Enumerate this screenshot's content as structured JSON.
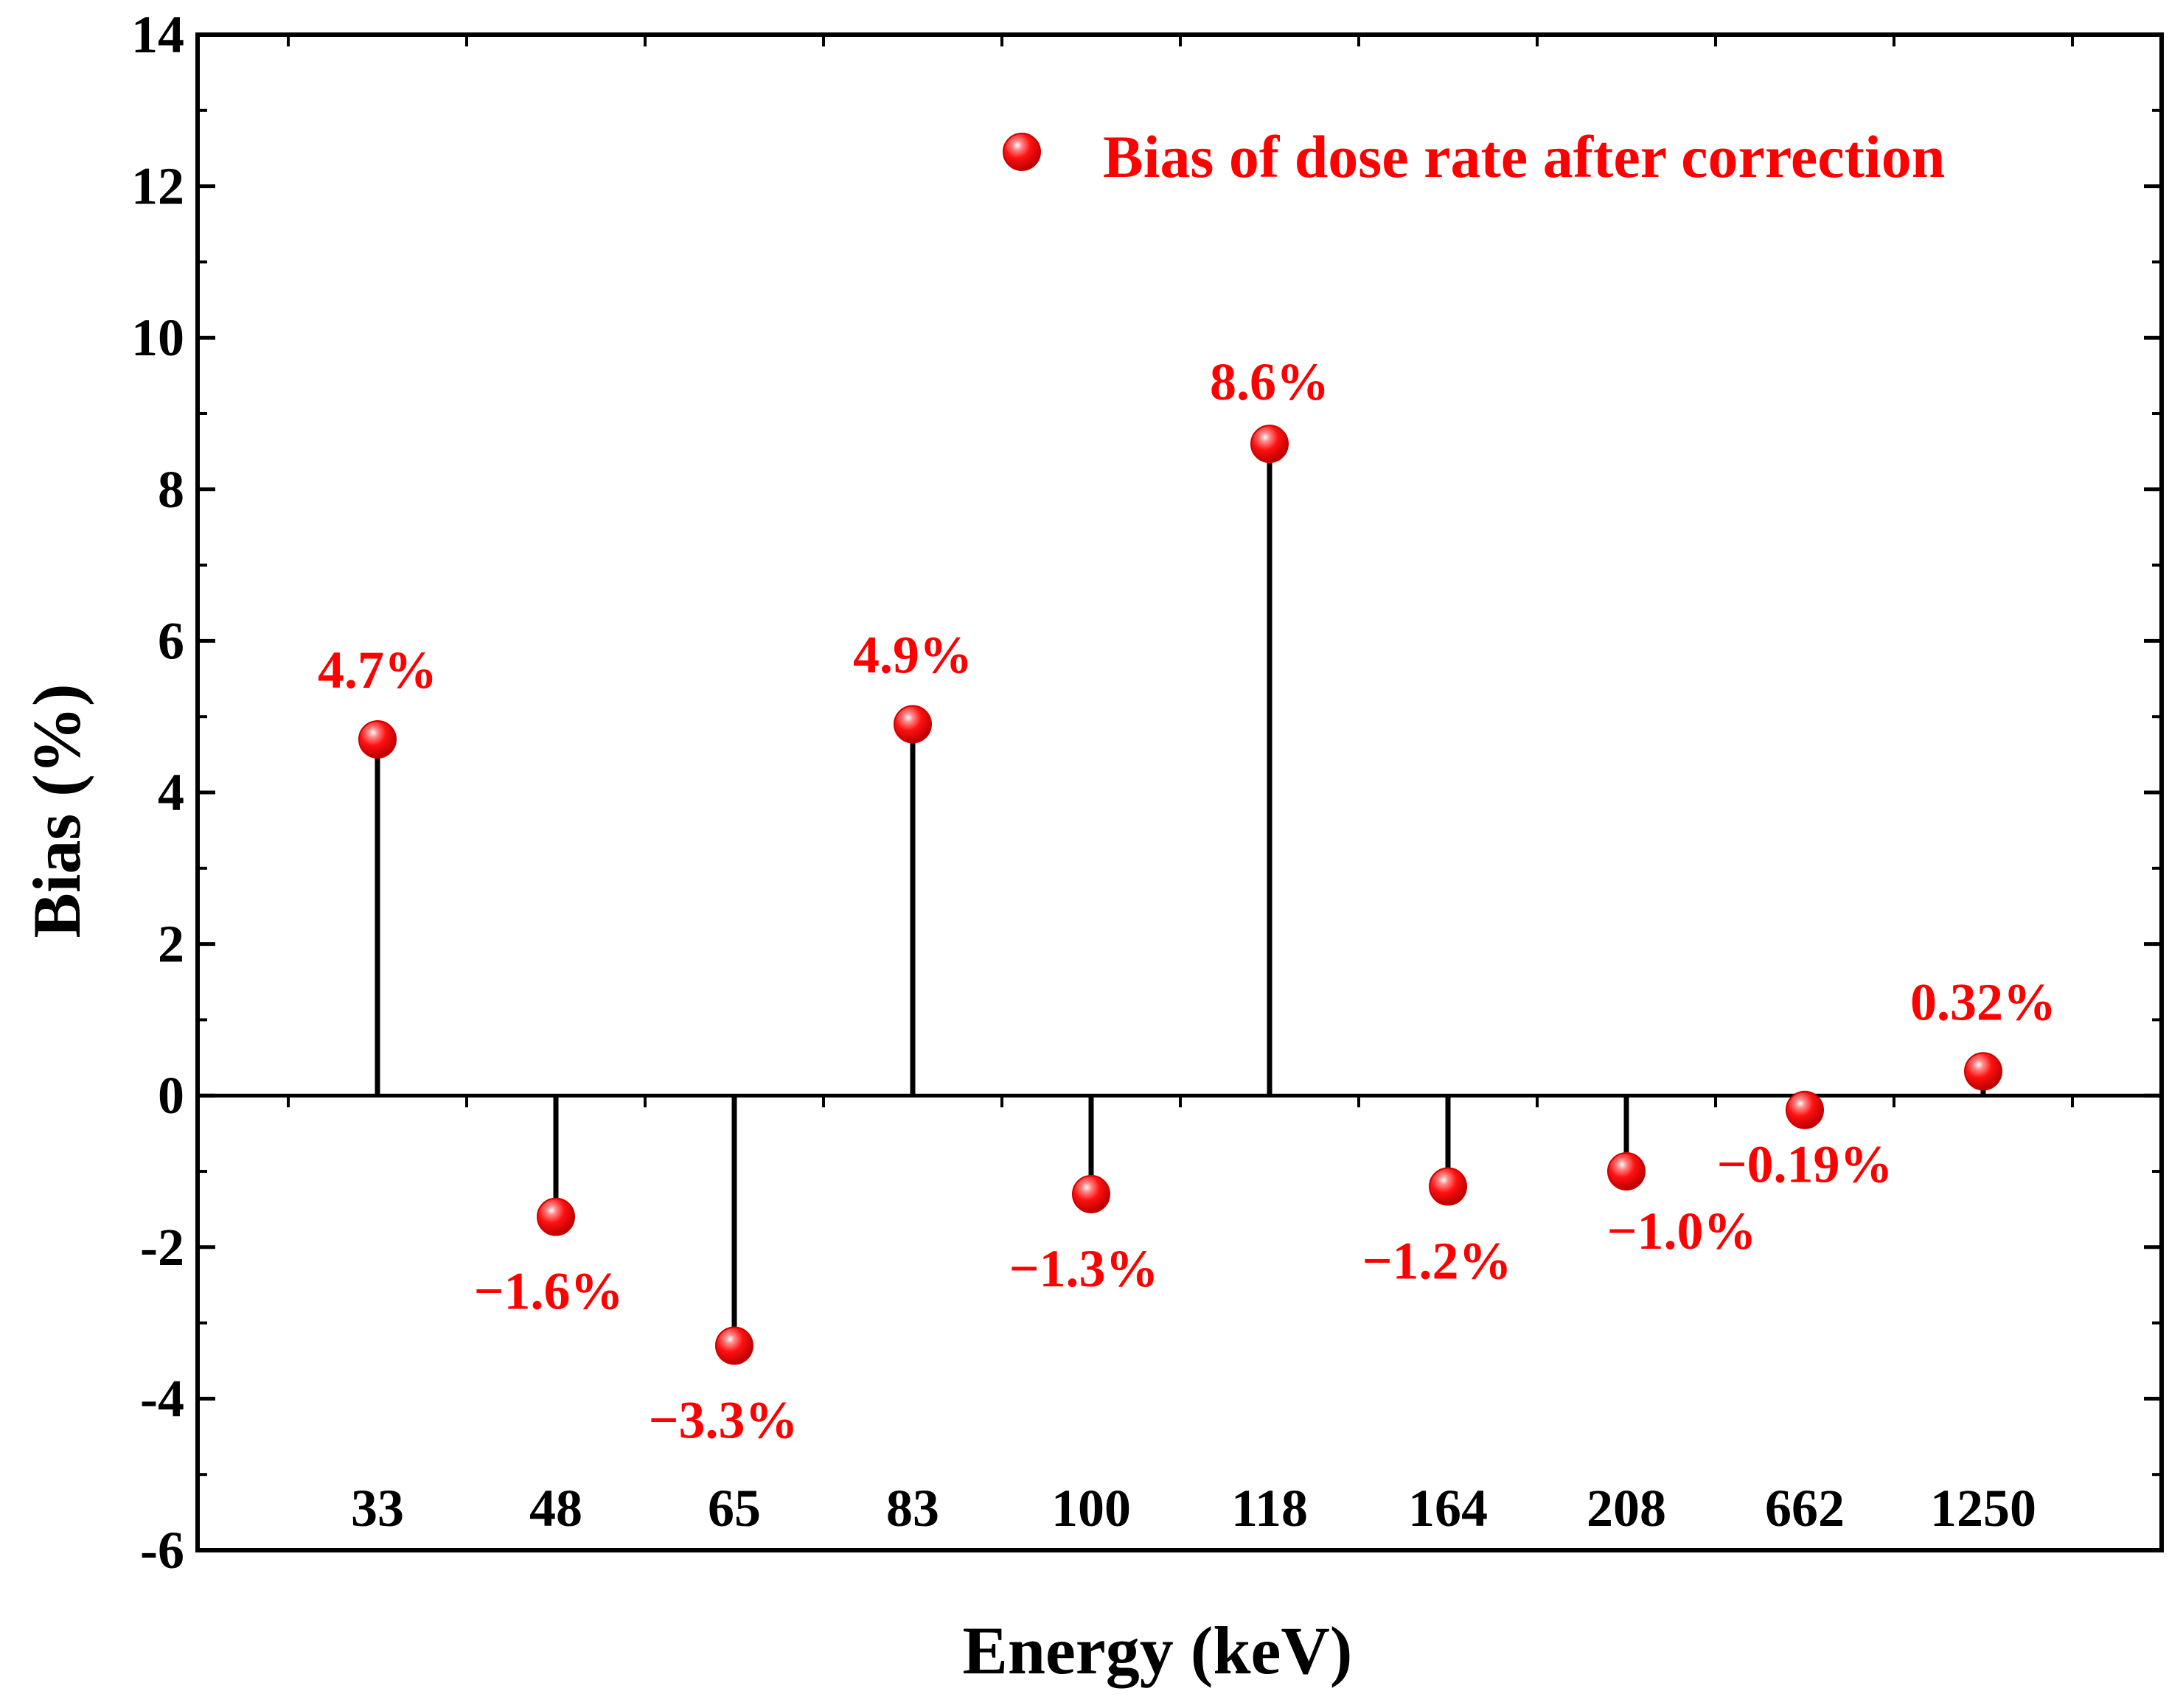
{
  "chart_data": {
    "type": "stem",
    "title": "",
    "xlabel": "Energy (keV)",
    "ylabel": "Bias (%)",
    "ylim": [
      -6,
      14
    ],
    "yticks": [
      -6,
      -4,
      -2,
      0,
      2,
      4,
      6,
      8,
      10,
      12,
      14
    ],
    "grid": false,
    "categories": [
      "33",
      "48",
      "65",
      "83",
      "100",
      "118",
      "164",
      "208",
      "662",
      "1250"
    ],
    "series": [
      {
        "name": "Bias of dose rate after correction",
        "color": "#ff0000",
        "values": [
          4.7,
          -1.6,
          -3.3,
          4.9,
          -1.3,
          8.6,
          -1.2,
          -1.0,
          -0.19,
          0.32
        ],
        "labels": [
          "4.7%",
          "−1.6%",
          "−3.3%",
          "4.9%",
          "−1.3%",
          "8.6%",
          "−1.2%",
          "−1.0%",
          "−0.19%",
          "0.32%"
        ]
      }
    ],
    "legend_position": "top-right"
  }
}
